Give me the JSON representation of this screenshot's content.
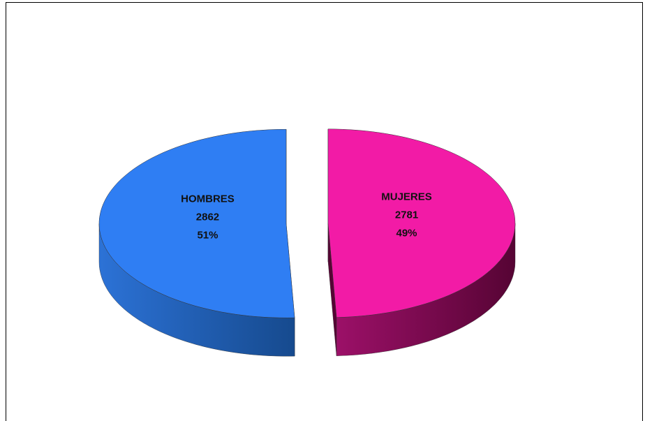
{
  "chart_data": {
    "type": "pie",
    "is_3d": true,
    "exploded": true,
    "categories": [
      "HOMBRES",
      "MUJERES"
    ],
    "values": [
      2862,
      2781
    ],
    "percent_labels": [
      "51%",
      "49%"
    ],
    "colors": [
      "#2f7ef3",
      "#f21ba6"
    ],
    "side_colors": [
      [
        "#2c72d6",
        "#164a8e"
      ],
      [
        "#9c1068",
        "#560434"
      ]
    ]
  }
}
